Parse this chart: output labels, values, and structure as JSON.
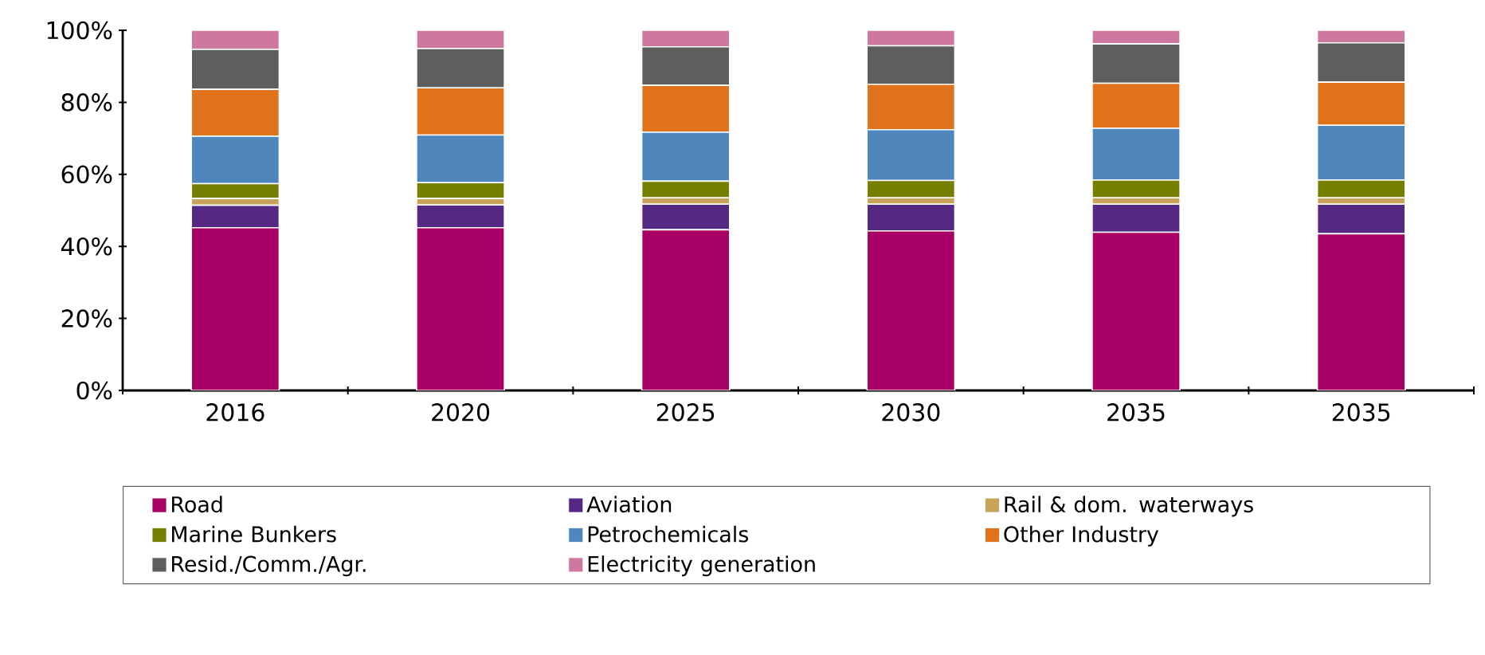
{
  "chart_data": {
    "type": "bar",
    "stacked": true,
    "categories": [
      "2016",
      "2020",
      "2025",
      "2030",
      "2035",
      "2035"
    ],
    "series": [
      {
        "name": "Road",
        "color": "#a80064",
        "values": [
          45.2,
          45.2,
          44.6,
          44.3,
          43.9,
          43.5
        ]
      },
      {
        "name": "Aviation",
        "color": "#552884",
        "values": [
          6.2,
          6.3,
          7.1,
          7.4,
          7.8,
          8.2
        ]
      },
      {
        "name": "Rail & dom. waterways",
        "color": "#c8a45a",
        "values": [
          1.9,
          1.8,
          1.8,
          1.8,
          1.8,
          1.8
        ]
      },
      {
        "name": "Marine Bunkers",
        "color": "#768000",
        "values": [
          4.1,
          4.4,
          4.6,
          4.8,
          4.9,
          4.9
        ]
      },
      {
        "name": "Petrochemicals",
        "color": "#4f86bb",
        "values": [
          13.2,
          13.2,
          13.6,
          14.1,
          14.4,
          15.2
        ]
      },
      {
        "name": "Other Industry",
        "color": "#e0721c",
        "values": [
          13.0,
          13.1,
          13.0,
          12.6,
          12.5,
          12.0
        ]
      },
      {
        "name": "Resid./Comm./Agr.",
        "color": "#5f5e5c",
        "values": [
          11.1,
          10.9,
          10.7,
          10.7,
          10.9,
          10.9
        ]
      },
      {
        "name": "Electricity generation",
        "color": "#ce789f",
        "values": [
          5.3,
          5.1,
          4.6,
          4.3,
          3.8,
          3.5
        ]
      }
    ],
    "ylim": [
      0,
      100
    ],
    "yticks": [
      {
        "value": 0,
        "label": "0%"
      },
      {
        "value": 20,
        "label": "20%"
      },
      {
        "value": 40,
        "label": "40%"
      },
      {
        "value": 60,
        "label": "60%"
      },
      {
        "value": 80,
        "label": "80%"
      },
      {
        "value": 100,
        "label": "100%"
      }
    ],
    "grid": false,
    "legend": "bottom"
  }
}
